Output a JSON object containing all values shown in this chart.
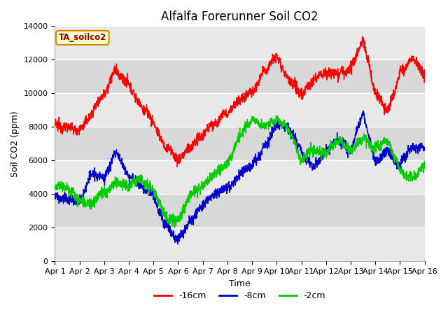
{
  "title": "Alfalfa Forerunner Soil CO2",
  "ylabel": "Soil CO2 (ppm)",
  "xlabel": "Time",
  "xlim": [
    0,
    15
  ],
  "ylim": [
    0,
    14000
  ],
  "yticks": [
    0,
    2000,
    4000,
    6000,
    8000,
    10000,
    12000,
    14000
  ],
  "xtick_positions": [
    0,
    1,
    2,
    3,
    4,
    5,
    6,
    7,
    8,
    9,
    10,
    11,
    12,
    13,
    14,
    15
  ],
  "xtick_labels": [
    "Apr 1",
    "Apr 2",
    "Apr 3",
    "Apr 4",
    "Apr 5",
    "Apr 6",
    "Apr 7",
    "Apr 8",
    "Apr 9",
    "Apr 10",
    "Apr 11",
    "Apr 12",
    "Apr 13",
    "Apr 14",
    "Apr 15",
    "Apr 16"
  ],
  "legend_label": "TA_soilco2",
  "series_labels": [
    "-16cm",
    "-8cm",
    "-2cm"
  ],
  "series_colors": [
    "#ff0000",
    "#0000cc",
    "#00cc00"
  ],
  "line_width": 1.0,
  "plot_bg_color": "#e8e8e8",
  "band_colors": [
    "#e0e0e0",
    "#ebebeb"
  ],
  "title_fontsize": 12,
  "axis_label_fontsize": 9,
  "tick_fontsize": 8
}
